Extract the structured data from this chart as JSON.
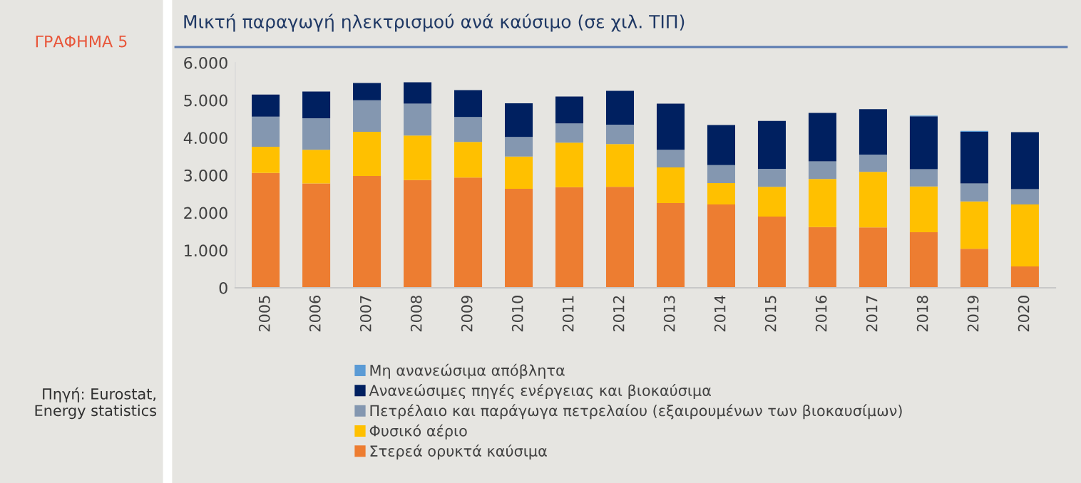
{
  "chart_data": {
    "type": "bar",
    "stacked": true,
    "title": "Μικτή παραγωγή ηλεκτρισμού ανά καύσιμο (σε χιλ. ΤΙΠ)",
    "annotations": [
      "ΓΡΑΦΗΜΑ 5",
      "Πηγή: Eurostat, Energy statistics"
    ],
    "categories": [
      "2005",
      "2006",
      "2007",
      "2008",
      "2009",
      "2010",
      "2011",
      "2012",
      "2013",
      "2014",
      "2015",
      "2016",
      "2017",
      "2018",
      "2019",
      "2020"
    ],
    "series": [
      {
        "name": "Στερεά ορυκτά καύσιμα",
        "color": "#ed7d31",
        "values": [
          3060,
          2780,
          2980,
          2870,
          2940,
          2640,
          2680,
          2690,
          2260,
          2220,
          1900,
          1620,
          1610,
          1480,
          1040,
          570
        ]
      },
      {
        "name": "Φυσικό αέριο",
        "color": "#ffc000",
        "values": [
          700,
          900,
          1180,
          1190,
          950,
          860,
          1190,
          1140,
          950,
          570,
          790,
          1280,
          1480,
          1220,
          1260,
          1650
        ]
      },
      {
        "name": "Πετρέλαιο και παράγωγα πετρελαίου (εξαιρουμένων των βιοκαυσίμων)",
        "color": "#8497b0",
        "values": [
          800,
          840,
          840,
          850,
          660,
          520,
          510,
          520,
          470,
          480,
          480,
          470,
          460,
          460,
          480,
          410
        ]
      },
      {
        "name": "Ανανεώσιμες πηγές ενέργειας και βιοκαύσιμα",
        "color": "#002060",
        "values": [
          590,
          710,
          460,
          570,
          720,
          900,
          720,
          900,
          1230,
          1070,
          1280,
          1290,
          1210,
          1410,
          1380,
          1520
        ]
      },
      {
        "name": "Μη ανανεώσιμα απόβλητα",
        "color": "#5b9bd5",
        "values": [
          null,
          null,
          null,
          null,
          null,
          null,
          null,
          null,
          null,
          null,
          null,
          null,
          null,
          20,
          20,
          null
        ]
      }
    ],
    "ylim": [
      0,
      6000
    ],
    "yticks": [
      {
        "value": 0,
        "label": "0"
      },
      {
        "value": 1000,
        "label": "1.000"
      },
      {
        "value": 2000,
        "label": "2.000"
      },
      {
        "value": 3000,
        "label": "3.000"
      },
      {
        "value": 4000,
        "label": "4.000"
      },
      {
        "value": 5000,
        "label": "5.000"
      },
      {
        "value": 6000,
        "label": "6.000"
      }
    ],
    "grid": false,
    "legend": "bottom"
  }
}
